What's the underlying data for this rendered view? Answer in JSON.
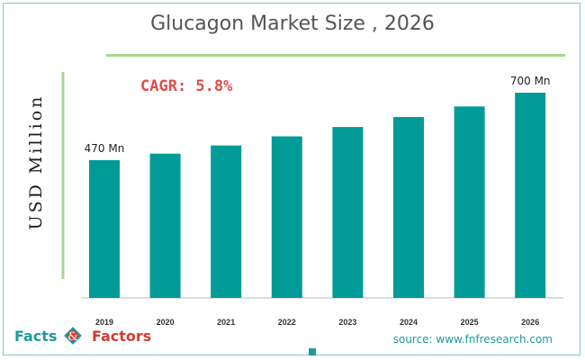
{
  "chart_data": {
    "type": "bar",
    "title": "Glucagon Market Size , 2026",
    "ylabel": "USD Million",
    "xlabel": "",
    "categories": [
      "2019",
      "2020",
      "2021",
      "2022",
      "2023",
      "2024",
      "2025",
      "2026"
    ],
    "values": [
      470,
      492,
      520,
      551,
      583,
      617,
      653,
      700
    ],
    "ylim": [
      0,
      800
    ],
    "data_labels": [
      {
        "category": "2019",
        "text": "470 Mn"
      },
      {
        "category": "2026",
        "text": "700 Mn"
      }
    ],
    "annotation": "CAGR: 5.8%",
    "grid": false,
    "legend": "none",
    "bar_color": "#009b96"
  },
  "branding": {
    "logo_facts": "Facts",
    "logo_factors": "Factors",
    "source": "source: www.fnfresearch.com"
  },
  "colors": {
    "accent_teal": "#1d9aa0",
    "accent_red": "#d63b33",
    "cagr_red": "#e14b4b",
    "rule_green": "#a6d98a"
  }
}
